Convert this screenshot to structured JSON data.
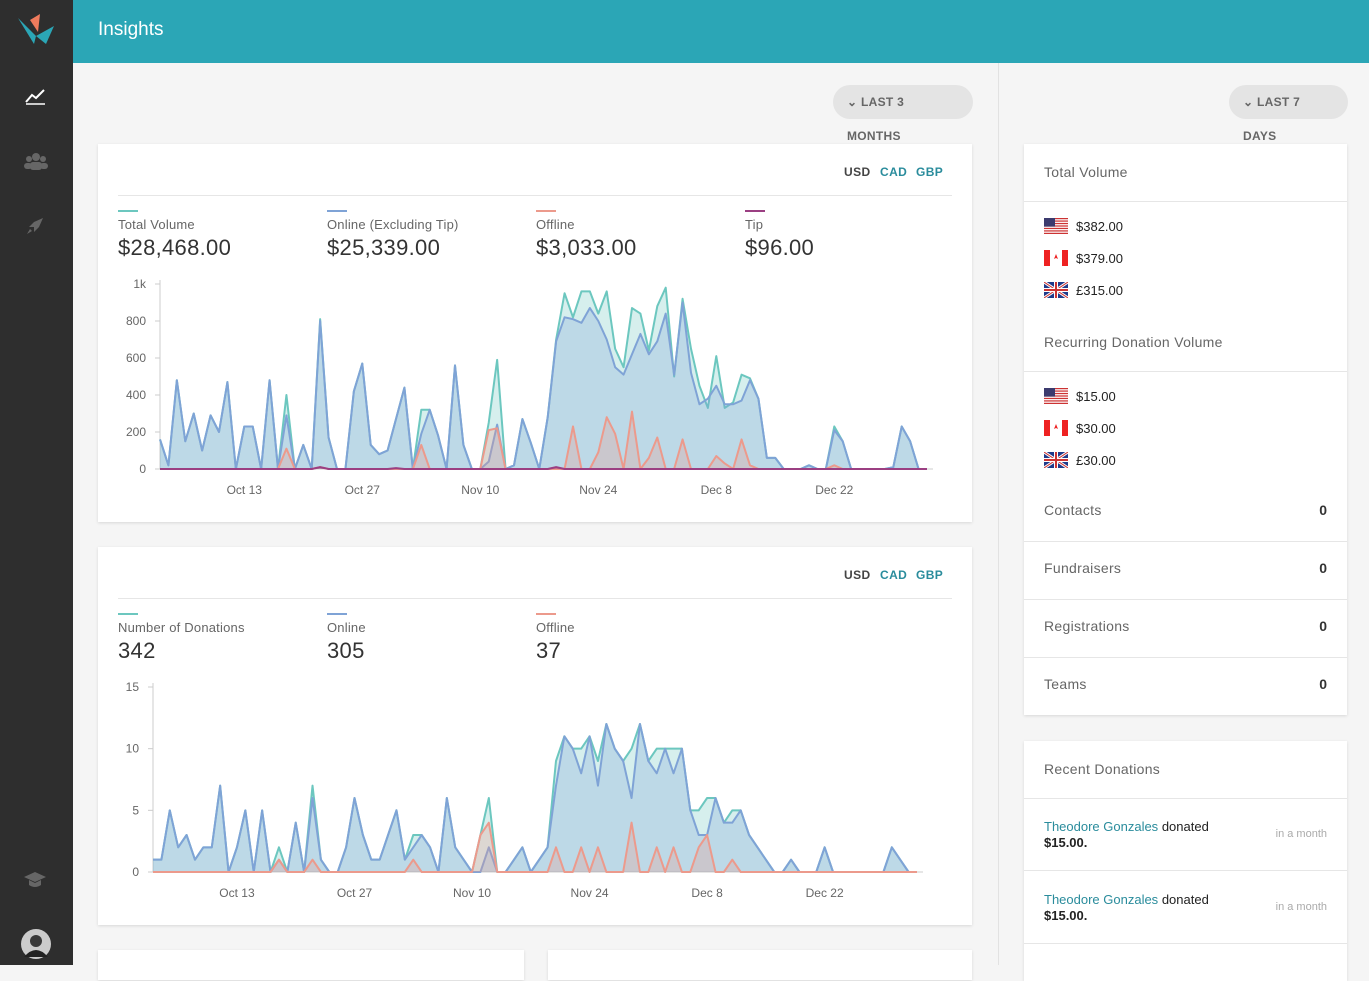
{
  "header": {
    "title": "Insights"
  },
  "filters": {
    "main": "LAST 3 MONTHS",
    "side": "LAST 7 DAYS"
  },
  "currency_options": [
    "USD",
    "CAD",
    "GBP"
  ],
  "chart_data": [
    {
      "type": "area",
      "categories": [
        null,
        null,
        null,
        null,
        null,
        null,
        null,
        null,
        null,
        null,
        "Oct 13",
        null,
        null,
        null,
        null,
        null,
        null,
        null,
        null,
        null,
        null,
        null,
        null,
        null,
        "Oct 27",
        null,
        null,
        null,
        null,
        null,
        null,
        null,
        null,
        null,
        null,
        null,
        null,
        null,
        "Nov 10",
        null,
        null,
        null,
        null,
        null,
        null,
        null,
        null,
        null,
        null,
        null,
        null,
        null,
        "Nov 24",
        null,
        null,
        null,
        null,
        null,
        null,
        null,
        null,
        null,
        null,
        null,
        null,
        null,
        "Dec 8",
        null,
        null,
        null,
        null,
        null,
        null,
        null,
        null,
        null,
        null,
        null,
        null,
        null,
        "Dec 22",
        null,
        null,
        null,
        null,
        null,
        null,
        null,
        null,
        null,
        null,
        null
      ],
      "ylim": [
        0,
        1000
      ],
      "yticks": [
        0,
        200,
        400,
        600,
        800,
        {
          "value": 1000,
          "label": "1k"
        }
      ],
      "series": [
        {
          "name": "Total Volume",
          "total": "$28,468.00",
          "color": "#6cc7bf",
          "values": [
            160,
            20,
            480,
            150,
            300,
            100,
            290,
            200,
            470,
            0,
            230,
            230,
            0,
            480,
            0,
            400,
            0,
            130,
            0,
            810,
            170,
            0,
            0,
            420,
            570,
            130,
            80,
            100,
            270,
            440,
            0,
            320,
            320,
            180,
            0,
            560,
            130,
            0,
            0,
            250,
            590,
            0,
            20,
            270,
            140,
            0,
            280,
            700,
            950,
            820,
            960,
            960,
            840,
            960,
            650,
            550,
            870,
            840,
            640,
            880,
            980,
            500,
            920,
            650,
            450,
            330,
            610,
            330,
            360,
            510,
            490,
            380,
            60,
            60,
            0,
            0,
            0,
            20,
            0,
            0,
            230,
            150,
            0,
            0,
            0,
            0,
            0,
            10,
            230,
            150,
            0,
            0
          ]
        },
        {
          "name": "Online (Excluding Tip)",
          "total": "$25,339.00",
          "color": "#7fa3d6",
          "values": [
            160,
            20,
            480,
            150,
            300,
            100,
            290,
            200,
            470,
            0,
            230,
            230,
            0,
            480,
            0,
            290,
            0,
            130,
            0,
            800,
            170,
            0,
            0,
            420,
            570,
            130,
            80,
            100,
            270,
            440,
            0,
            190,
            320,
            180,
            0,
            560,
            130,
            0,
            0,
            40,
            240,
            0,
            20,
            270,
            140,
            0,
            280,
            690,
            820,
            810,
            790,
            870,
            800,
            700,
            550,
            510,
            620,
            730,
            620,
            690,
            840,
            510,
            900,
            520,
            350,
            380,
            450,
            350,
            350,
            370,
            480,
            380,
            60,
            60,
            0,
            0,
            0,
            20,
            0,
            0,
            210,
            150,
            0,
            0,
            0,
            0,
            0,
            10,
            230,
            150,
            0,
            0
          ]
        },
        {
          "name": "Offline",
          "total": "$3,033.00",
          "color": "#ec9a8c",
          "values": [
            0,
            0,
            0,
            0,
            0,
            0,
            0,
            0,
            0,
            0,
            0,
            0,
            0,
            0,
            0,
            110,
            0,
            0,
            0,
            10,
            0,
            0,
            0,
            0,
            0,
            0,
            0,
            0,
            0,
            0,
            0,
            130,
            0,
            0,
            0,
            0,
            0,
            0,
            0,
            210,
            220,
            0,
            0,
            0,
            0,
            0,
            0,
            0,
            0,
            230,
            0,
            0,
            90,
            280,
            190,
            0,
            310,
            0,
            60,
            170,
            0,
            0,
            160,
            0,
            0,
            0,
            70,
            30,
            0,
            160,
            20,
            0,
            0,
            0,
            0,
            0,
            0,
            0,
            0,
            0,
            20,
            0,
            0,
            0,
            0,
            0,
            0,
            0,
            0,
            0,
            0,
            0
          ]
        },
        {
          "name": "Tip",
          "total": "$96.00",
          "color": "#9b3f82",
          "values": [
            0,
            0,
            0,
            0,
            0,
            0,
            0,
            0,
            0,
            0,
            0,
            0,
            0,
            0,
            0,
            0,
            0,
            0,
            0,
            10,
            0,
            0,
            0,
            0,
            0,
            0,
            0,
            0,
            5,
            0,
            0,
            0,
            0,
            0,
            0,
            0,
            0,
            0,
            0,
            0,
            0,
            0,
            0,
            0,
            0,
            0,
            0,
            10,
            0,
            0,
            0,
            0,
            0,
            0,
            0,
            0,
            0,
            0,
            0,
            0,
            0,
            0,
            0,
            0,
            0,
            0,
            0,
            0,
            0,
            0,
            0,
            0,
            0,
            0,
            0,
            0,
            0,
            0,
            0,
            0,
            0,
            0,
            0,
            0,
            0,
            0,
            0,
            0,
            0,
            0,
            0,
            0
          ]
        }
      ]
    },
    {
      "type": "area",
      "categories": [
        null,
        null,
        null,
        null,
        null,
        null,
        null,
        null,
        null,
        null,
        "Oct 13",
        null,
        null,
        null,
        null,
        null,
        null,
        null,
        null,
        null,
        null,
        null,
        null,
        null,
        "Oct 27",
        null,
        null,
        null,
        null,
        null,
        null,
        null,
        null,
        null,
        null,
        null,
        null,
        null,
        "Nov 10",
        null,
        null,
        null,
        null,
        null,
        null,
        null,
        null,
        null,
        null,
        null,
        null,
        null,
        "Nov 24",
        null,
        null,
        null,
        null,
        null,
        null,
        null,
        null,
        null,
        null,
        null,
        null,
        null,
        "Dec 8",
        null,
        null,
        null,
        null,
        null,
        null,
        null,
        null,
        null,
        null,
        null,
        null,
        null,
        "Dec 22",
        null,
        null,
        null,
        null,
        null,
        null,
        null,
        null,
        null,
        null,
        null
      ],
      "ylim": [
        0,
        15
      ],
      "yticks": [
        0,
        5,
        10,
        15
      ],
      "series": [
        {
          "name": "Number of Donations",
          "total": "342",
          "color": "#6cc7bf",
          "values": [
            1,
            1,
            5,
            2,
            3,
            1,
            2,
            2,
            7,
            0,
            2,
            5,
            0,
            5,
            0,
            2,
            0,
            4,
            0,
            7,
            1,
            0,
            0,
            2,
            6,
            3,
            1,
            1,
            3,
            5,
            1,
            3,
            3,
            2,
            0,
            6,
            2,
            1,
            0,
            3,
            6,
            0,
            0,
            1,
            2,
            0,
            1,
            2,
            9,
            11,
            10,
            10,
            11,
            9,
            12,
            10,
            9,
            10,
            12,
            9,
            10,
            10,
            10,
            10,
            5,
            5,
            6,
            6,
            4,
            5,
            5,
            3,
            2,
            1,
            0,
            0,
            1,
            0,
            0,
            0,
            2,
            0,
            0,
            0,
            0,
            0,
            0,
            0,
            2,
            1,
            0,
            0
          ]
        },
        {
          "name": "Online",
          "total": "305",
          "color": "#7fa3d6",
          "values": [
            1,
            1,
            5,
            2,
            3,
            1,
            2,
            2,
            7,
            0,
            2,
            5,
            0,
            5,
            0,
            1,
            0,
            4,
            0,
            6,
            1,
            0,
            0,
            2,
            6,
            3,
            1,
            1,
            3,
            5,
            1,
            2,
            3,
            2,
            0,
            6,
            2,
            1,
            0,
            0,
            2,
            0,
            0,
            1,
            2,
            0,
            1,
            2,
            7,
            11,
            10,
            8,
            11,
            7,
            12,
            10,
            9,
            6,
            12,
            9,
            8,
            10,
            8,
            10,
            5,
            3,
            3,
            6,
            4,
            4,
            5,
            3,
            2,
            1,
            0,
            0,
            1,
            0,
            0,
            0,
            2,
            0,
            0,
            0,
            0,
            0,
            0,
            0,
            2,
            1,
            0,
            0
          ]
        },
        {
          "name": "Offline",
          "total": "37",
          "color": "#ec9a8c",
          "values": [
            0,
            0,
            0,
            0,
            0,
            0,
            0,
            0,
            0,
            0,
            0,
            0,
            0,
            0,
            0,
            1,
            0,
            0,
            0,
            1,
            0,
            0,
            0,
            0,
            0,
            0,
            0,
            0,
            0,
            0,
            0,
            1,
            0,
            0,
            0,
            0,
            0,
            0,
            0,
            3,
            4,
            0,
            0,
            0,
            0,
            0,
            0,
            0,
            2,
            0,
            0,
            2,
            0,
            2,
            0,
            0,
            0,
            4,
            0,
            0,
            2,
            0,
            2,
            0,
            0,
            2,
            3,
            0,
            0,
            1,
            0,
            0,
            0,
            0,
            0,
            0,
            0,
            0,
            0,
            0,
            0,
            0,
            0,
            0,
            0,
            0,
            0,
            0,
            0,
            0,
            0,
            0
          ]
        }
      ]
    }
  ],
  "side_panel": {
    "total_volume": {
      "title": "Total Volume",
      "items": [
        "$382.00",
        "$379.00",
        "£315.00"
      ]
    },
    "recurring": {
      "title": "Recurring Donation Volume",
      "items": [
        "$15.00",
        "$30.00",
        "£30.00"
      ]
    },
    "counts": [
      {
        "label": "Contacts",
        "value": 0
      },
      {
        "label": "Fundraisers",
        "value": 0
      },
      {
        "label": "Registrations",
        "value": 0
      },
      {
        "label": "Teams",
        "value": 0
      }
    ]
  },
  "recent": {
    "title": "Recent Donations",
    "items": [
      {
        "name": "Theodore Gonzales",
        "verb": "donated",
        "amount": "$15.00.",
        "time": "in a month"
      },
      {
        "name": "Theodore Gonzales",
        "verb": "donated",
        "amount": "$15.00.",
        "time": "in a month"
      }
    ]
  }
}
